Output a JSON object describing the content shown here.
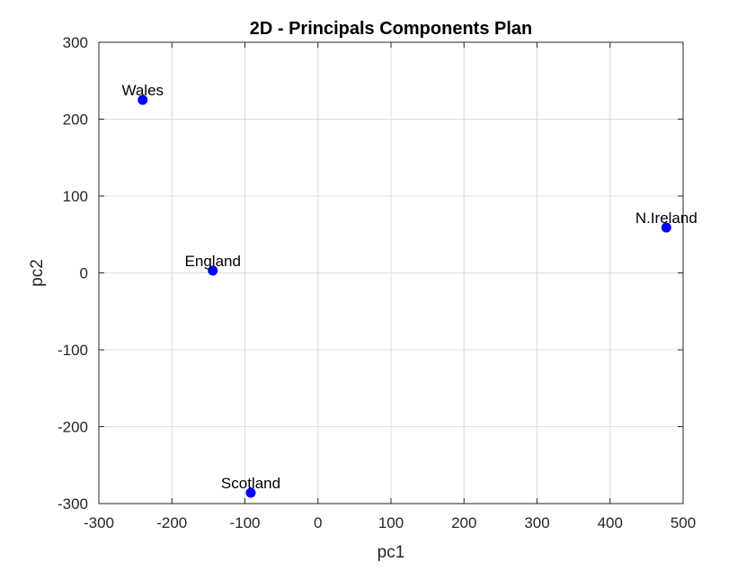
{
  "chart_data": {
    "type": "scatter",
    "title": "2D - Principals Components Plan",
    "xlabel": "pc1",
    "ylabel": "pc2",
    "xlim": [
      -300,
      500
    ],
    "ylim": [
      -300,
      300
    ],
    "xticks": [
      -300,
      -200,
      -100,
      0,
      100,
      200,
      300,
      400,
      500
    ],
    "yticks": [
      -300,
      -200,
      -100,
      0,
      100,
      200,
      300
    ],
    "grid": true,
    "marker_color": "#0000ff",
    "points": [
      {
        "label": "Wales",
        "x": -240,
        "y": 225
      },
      {
        "label": "England",
        "x": -144,
        "y": 3
      },
      {
        "label": "Scotland",
        "x": -92,
        "y": -286
      },
      {
        "label": "N.Ireland",
        "x": 477,
        "y": 59
      }
    ]
  }
}
